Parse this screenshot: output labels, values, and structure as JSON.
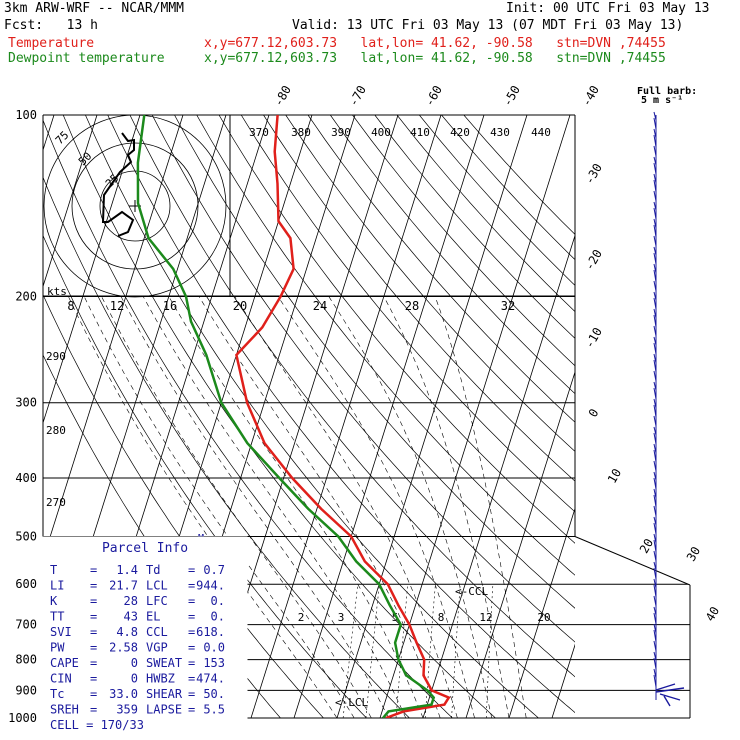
{
  "header": {
    "model": "3km ARW-WRF -- NCAR/MMM",
    "init": "Init: 00 UTC Fri 03 May 13",
    "fcst": "Fcst:   13 h",
    "valid": "Valid: 13 UTC Fri 03 May 13 (07 MDT Fri 03 May 13)",
    "temp_label": "Temperature",
    "dew_label": "Dewpoint temperature",
    "loc_temp": "x,y=677.12,603.73   lat,lon= 41.62, -90.58   stn=DVN ,74455",
    "loc_dew": "x,y=677.12,603.73   lat,lon= 41.62, -90.58   stn=DVN ,74455"
  },
  "barb_title_1": "Full barb:",
  "barb_title_2": "5 m s⁻¹",
  "parcel": {
    "title": "Parcel Info",
    "rows": [
      {
        "l1": "T",
        "v1": "1.4",
        "l2": "Td",
        "v2": "0.7"
      },
      {
        "l1": "LI",
        "v1": "21.7",
        "l2": "LCL",
        "v2": "944."
      },
      {
        "l1": "K",
        "v1": "28",
        "l2": "LFC",
        "v2": "0."
      },
      {
        "l1": "TT",
        "v1": "43",
        "l2": "EL",
        "v2": "0."
      },
      {
        "l1": "SVI",
        "v1": "4.8",
        "l2": "CCL",
        "v2": "618."
      },
      {
        "l1": "PW",
        "v1": "2.58",
        "l2": "VGP",
        "v2": "0.0"
      },
      {
        "l1": "CAPE",
        "v1": "0",
        "l2": "SWEAT",
        "v2": "153"
      },
      {
        "l1": "CIN",
        "v1": "0",
        "l2": "HWBZ",
        "v2": "474."
      },
      {
        "l1": "Tc",
        "v1": "33.0",
        "l2": "SHEAR",
        "v2": "50."
      },
      {
        "l1": "SREH",
        "v1": "359",
        "l2": "LAPSE",
        "v2": "5.5"
      }
    ],
    "cell": "CELL = 170/33"
  },
  "markers": {
    "ccl": "<-CCL",
    "lcl": "<-LCL",
    "m": "M"
  },
  "hodograph": {
    "units": "kts",
    "ring_labels": [
      "25",
      "50",
      "75"
    ]
  },
  "chart_data": {
    "type": "line",
    "pressure_levels": [
      100,
      200,
      300,
      400,
      500,
      600,
      700,
      800,
      900,
      1000
    ],
    "isotherm_labels": [
      "-80",
      "-70",
      "-60",
      "-50",
      "-40",
      "-30",
      "-20",
      "-10",
      "0",
      "10",
      "20",
      "30",
      "40"
    ],
    "mixing_ratio_labels": [
      "2",
      "3",
      "5",
      "8",
      "12",
      "20"
    ],
    "theta_e_labels": [
      "370",
      "380",
      "390",
      "400",
      "410",
      "420",
      "430",
      "440"
    ],
    "inset_x_labels": [
      "8",
      "12",
      "16",
      "20",
      "24",
      "28",
      "32"
    ],
    "theta_labels": [
      "290",
      "280",
      "270"
    ],
    "series": [
      {
        "name": "Temperature",
        "color": "#e0201b",
        "points": [
          [
            1.4,
            1000
          ],
          [
            5,
            975
          ],
          [
            14,
            950
          ],
          [
            14.5,
            925
          ],
          [
            10,
            900
          ],
          [
            7,
            850
          ],
          [
            6,
            800
          ],
          [
            3,
            750
          ],
          [
            0,
            700
          ],
          [
            -4,
            650
          ],
          [
            -8,
            600
          ],
          [
            -15,
            550
          ],
          [
            -20,
            500
          ],
          [
            -29,
            450
          ],
          [
            -38,
            400
          ],
          [
            -47,
            350
          ],
          [
            -54,
            300
          ],
          [
            -60,
            250
          ],
          [
            -56,
            225
          ],
          [
            -54,
            200
          ],
          [
            -53,
            180
          ],
          [
            -56,
            160
          ],
          [
            -60,
            150
          ],
          [
            -63,
            130
          ],
          [
            -66,
            115
          ],
          [
            -68,
            100
          ]
        ]
      },
      {
        "name": "Dewpoint temperature",
        "color": "#1c8a1c",
        "points": [
          [
            0.7,
            1000
          ],
          [
            1.5,
            975
          ],
          [
            11,
            950
          ],
          [
            11,
            925
          ],
          [
            9,
            900
          ],
          [
            3,
            850
          ],
          [
            0,
            800
          ],
          [
            -2,
            750
          ],
          [
            -2,
            700
          ],
          [
            -6,
            650
          ],
          [
            -10,
            600
          ],
          [
            -17,
            550
          ],
          [
            -23,
            500
          ],
          [
            -32,
            450
          ],
          [
            -41,
            400
          ],
          [
            -51,
            350
          ],
          [
            -60,
            300
          ],
          [
            -67,
            250
          ],
          [
            -73,
            220
          ],
          [
            -76,
            200
          ],
          [
            -81,
            180
          ],
          [
            -89,
            160
          ],
          [
            -94,
            140
          ],
          [
            -97,
            120
          ],
          [
            -99,
            100
          ]
        ]
      }
    ]
  }
}
